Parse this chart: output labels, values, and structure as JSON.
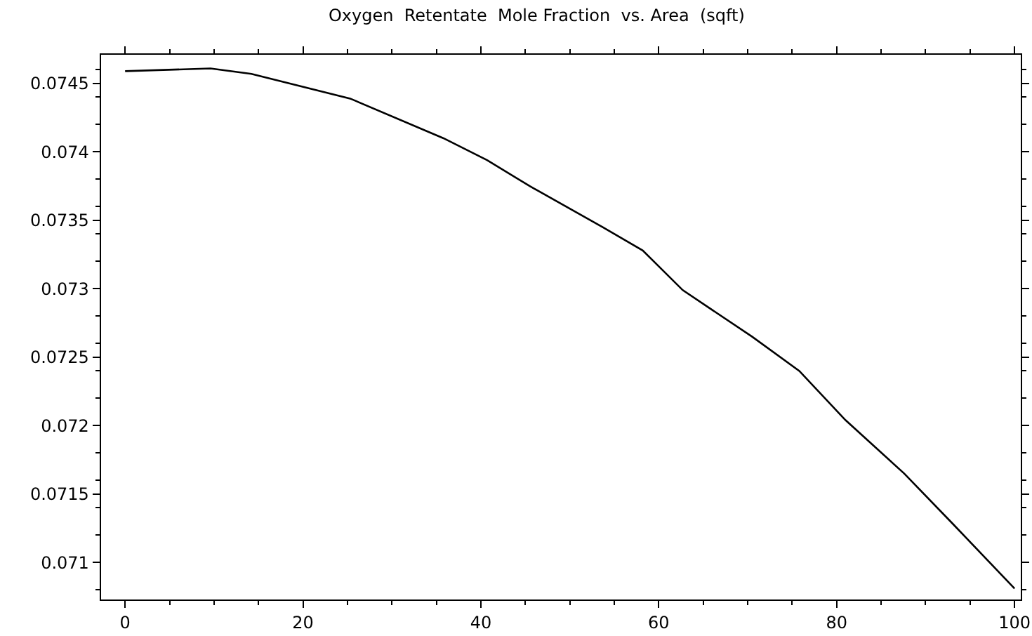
{
  "chart_data": {
    "type": "line",
    "title": "Oxygen  Retentate  Mole Fraction  vs. Area  (sqft)",
    "x": [
      0,
      9.6,
      14.2,
      25.3,
      35.8,
      40.7,
      45.5,
      53.7,
      58.2,
      62.7,
      70.5,
      75.8,
      81,
      87.6,
      93.1,
      100
    ],
    "series": [
      {
        "color": "#000000",
        "values": [
          0.07459,
          0.07461,
          0.07457,
          0.07439,
          0.0741,
          0.07394,
          0.07375,
          0.07345,
          0.07328,
          0.07299,
          0.07265,
          0.0724,
          0.07204,
          0.07165,
          0.07128,
          0.07081
        ]
      }
    ],
    "xlim": [
      -2.7,
      100.7
    ],
    "ylim": [
      0.07073,
      0.07471
    ],
    "xticks": [
      0,
      20,
      40,
      60,
      80,
      100
    ],
    "yticks": [
      0.071,
      0.0715,
      0.072,
      0.0725,
      0.073,
      0.0735,
      0.074,
      0.0745
    ],
    "legend": false,
    "marker": "none",
    "line_style": "solid"
  }
}
